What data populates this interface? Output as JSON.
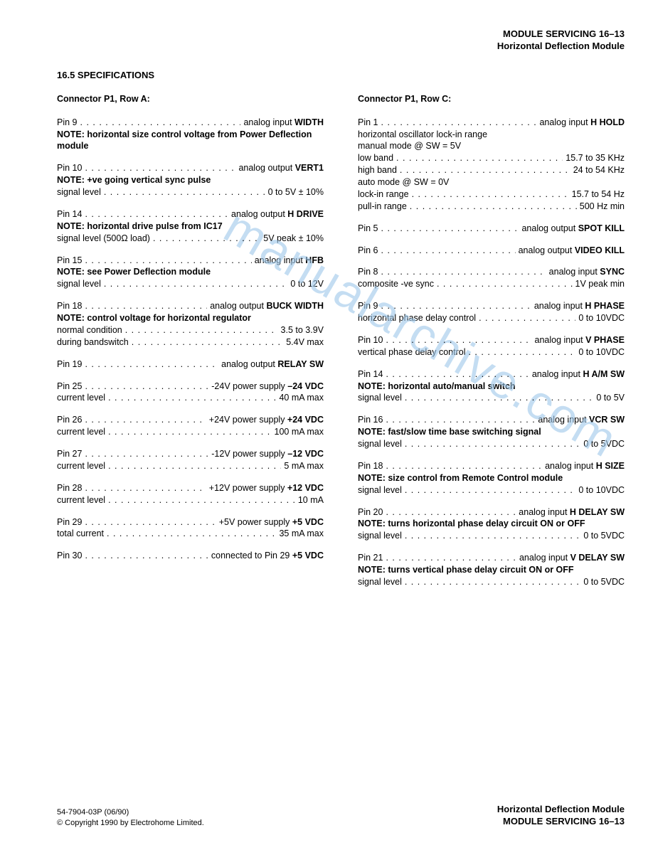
{
  "header": {
    "line1_prefix": "MODULE SERVICING",
    "line1_page": "16–13",
    "line2": "Horizontal Deflection Module"
  },
  "section_title": "16.5 SPECIFICATIONS",
  "watermark": "manualarchive.com",
  "colA": {
    "heading": "Connector P1, Row A:",
    "entries": [
      {
        "rows": [
          {
            "lhs": "Pin 9",
            "rhs_prefix": "analog input ",
            "rhs_bold": "WIDTH"
          }
        ],
        "note": "NOTE: horizontal size control voltage from Power Deflection module"
      },
      {
        "rows": [
          {
            "lhs": "Pin 10",
            "rhs_prefix": "analog output ",
            "rhs_bold": "VERT1"
          }
        ],
        "note": "NOTE: +ve going vertical sync pulse",
        "after_rows": [
          {
            "lhs": "signal level",
            "rhs": "0 to 5V ± 10%"
          }
        ]
      },
      {
        "rows": [
          {
            "lhs": "Pin 14",
            "rhs_prefix": "analog output ",
            "rhs_bold": "H DRIVE"
          }
        ],
        "note": "NOTE: horizontal drive pulse from IC17",
        "after_rows": [
          {
            "lhs": "signal level (500Ω load)",
            "rhs": "5V peak ± 10%"
          }
        ]
      },
      {
        "rows": [
          {
            "lhs": "Pin 15",
            "rhs_prefix": "analog input ",
            "rhs_bold": "HFB"
          }
        ],
        "note": "NOTE: see Power Deflection module",
        "after_rows": [
          {
            "lhs": "signal level",
            "rhs": "0 to 12V"
          }
        ]
      },
      {
        "rows": [
          {
            "lhs": "Pin 18",
            "rhs_prefix": "analog output ",
            "rhs_bold": "BUCK WIDTH"
          }
        ],
        "note": "NOTE: control voltage for horizontal regulator",
        "after_rows": [
          {
            "lhs": "normal condition",
            "rhs": "3.5 to 3.9V"
          },
          {
            "lhs": "during bandswitch",
            "rhs": "5.4V max"
          }
        ]
      },
      {
        "rows": [
          {
            "lhs": "Pin 19",
            "rhs_prefix": "analog output ",
            "rhs_bold": "RELAY SW"
          }
        ]
      },
      {
        "rows": [
          {
            "lhs": "Pin 25",
            "rhs_prefix": "-24V power supply ",
            "rhs_bold": "–24 VDC"
          }
        ],
        "after_rows": [
          {
            "lhs": "current level",
            "rhs": "40 mA max"
          }
        ]
      },
      {
        "rows": [
          {
            "lhs": "Pin 26",
            "rhs_prefix": "+24V power supply ",
            "rhs_bold": "+24 VDC"
          }
        ],
        "after_rows": [
          {
            "lhs": "current level",
            "rhs": "100 mA max"
          }
        ]
      },
      {
        "rows": [
          {
            "lhs": "Pin 27",
            "rhs_prefix": "-12V power supply ",
            "rhs_bold": "–12 VDC"
          }
        ],
        "after_rows": [
          {
            "lhs": "current level",
            "rhs": "5 mA max"
          }
        ]
      },
      {
        "rows": [
          {
            "lhs": "Pin 28",
            "rhs_prefix": "+12V power supply ",
            "rhs_bold": "+12 VDC"
          }
        ],
        "after_rows": [
          {
            "lhs": "current level",
            "rhs": "10 mA"
          }
        ]
      },
      {
        "rows": [
          {
            "lhs": "Pin 29",
            "rhs_prefix": "+5V power supply ",
            "rhs_bold": "+5 VDC"
          }
        ],
        "after_rows": [
          {
            "lhs": "total current",
            "rhs": "35 mA max"
          }
        ]
      },
      {
        "rows": [
          {
            "lhs": "Pin 30",
            "rhs_prefix": "connected to Pin 29 ",
            "rhs_bold": "+5 VDC"
          }
        ]
      }
    ]
  },
  "colC": {
    "heading": "Connector P1, Row C:",
    "entries": [
      {
        "rows": [
          {
            "lhs": "Pin 1",
            "rhs_prefix": "analog input ",
            "rhs_bold": "H HOLD"
          }
        ],
        "plain_lines": [
          "horizontal oscillator lock-in range",
          "manual mode @ SW = 5V"
        ],
        "after_rows": [
          {
            "lhs": "low band",
            "rhs": "15.7 to 35 KHz"
          },
          {
            "lhs": "high band",
            "rhs": "24 to 54 KHz"
          }
        ],
        "plain_lines2": [
          "auto mode @ SW = 0V"
        ],
        "after_rows2": [
          {
            "lhs": "lock-in range",
            "rhs": "15.7 to 54 Hz"
          },
          {
            "lhs": "pull-in range",
            "rhs": "500 Hz min"
          }
        ]
      },
      {
        "rows": [
          {
            "lhs": "Pin 5",
            "rhs_prefix": "analog output ",
            "rhs_bold": "SPOT KILL"
          }
        ]
      },
      {
        "rows": [
          {
            "lhs": "Pin 6",
            "rhs_prefix": "analog output ",
            "rhs_bold": "VIDEO KILL"
          }
        ]
      },
      {
        "rows": [
          {
            "lhs": "Pin 8",
            "rhs_prefix": "analog input ",
            "rhs_bold": "SYNC"
          }
        ],
        "after_rows": [
          {
            "lhs": "composite -ve sync",
            "rhs": "1V peak min"
          }
        ]
      },
      {
        "rows": [
          {
            "lhs": "Pin 9",
            "rhs_prefix": "analog input ",
            "rhs_bold": "H PHASE"
          }
        ],
        "after_rows": [
          {
            "lhs": "horizontal phase delay control",
            "rhs": "0 to 10VDC"
          }
        ]
      },
      {
        "rows": [
          {
            "lhs": "Pin 10",
            "rhs_prefix": "analog input ",
            "rhs_bold": "V PHASE"
          }
        ],
        "after_rows": [
          {
            "lhs": "vertical phase delay control",
            "rhs": "0 to 10VDC"
          }
        ]
      },
      {
        "rows": [
          {
            "lhs": "Pin 14",
            "rhs_prefix": "analog input ",
            "rhs_bold": "H A/M SW"
          }
        ],
        "note": "NOTE: horizontal auto/manual switch",
        "after_rows": [
          {
            "lhs": "signal level",
            "rhs": "0 to 5V"
          }
        ]
      },
      {
        "rows": [
          {
            "lhs": "Pin 16",
            "rhs_prefix": "analog input ",
            "rhs_bold": "VCR SW"
          }
        ],
        "note": "NOTE: fast/slow time base switching signal",
        "after_rows": [
          {
            "lhs": "signal level",
            "rhs": "0 to 5VDC"
          }
        ]
      },
      {
        "rows": [
          {
            "lhs": "Pin 18",
            "rhs_prefix": "analog input ",
            "rhs_bold": "H SIZE"
          }
        ],
        "note": "NOTE: size control from Remote Control module",
        "after_rows": [
          {
            "lhs": "signal level",
            "rhs": "0 to 10VDC"
          }
        ]
      },
      {
        "rows": [
          {
            "lhs": "Pin 20",
            "rhs_prefix": "analog input ",
            "rhs_bold": "H DELAY SW"
          }
        ],
        "note": "NOTE: turns horizontal phase delay circuit ON or OFF",
        "after_rows": [
          {
            "lhs": "signal level",
            "rhs": "0 to 5VDC"
          }
        ]
      },
      {
        "rows": [
          {
            "lhs": "Pin 21",
            "rhs_prefix": "analog input ",
            "rhs_bold": "V DELAY SW"
          }
        ],
        "note": "NOTE: turns vertical phase delay circuit ON or OFF",
        "after_rows": [
          {
            "lhs": "signal level",
            "rhs": "0 to 5VDC"
          }
        ]
      }
    ]
  },
  "footer": {
    "left_line1": "54-7904-03P (06/90)",
    "left_line2": "© Copyright 1990 by Electrohome Limited.",
    "right_line1": "Horizontal Deflection Module",
    "right_line2_prefix": "MODULE SERVICING",
    "right_line2_page": "16–13"
  }
}
